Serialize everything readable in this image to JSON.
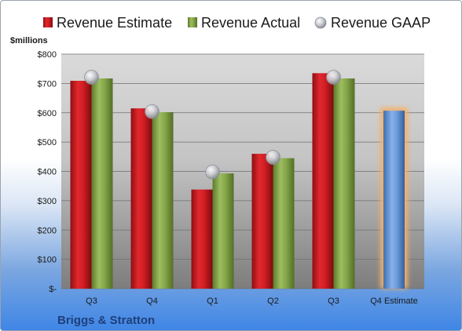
{
  "chart_data": {
    "type": "bar",
    "unit_label": "$millions",
    "company": "Briggs & Stratton",
    "categories": [
      "Q3",
      "Q4",
      "Q1",
      "Q2",
      "Q3",
      "Q4 Estimate"
    ],
    "ylim": [
      0,
      800
    ],
    "y_ticks": [
      0,
      100,
      200,
      300,
      400,
      500,
      600,
      700,
      800
    ],
    "y_tick_labels": [
      "$-",
      "$100",
      "$200",
      "$300",
      "$400",
      "$500",
      "$600",
      "$700",
      "$800"
    ],
    "grid": true,
    "legend_position": "top",
    "series": [
      {
        "name": "Revenue Estimate",
        "kind": "bar",
        "color": "#d11e24",
        "values": [
          709,
          615,
          338,
          460,
          735,
          null
        ]
      },
      {
        "name": "Revenue Actual",
        "kind": "bar",
        "color": "#86a84a",
        "values": [
          717,
          602,
          393,
          445,
          717,
          null
        ]
      },
      {
        "name": "Revenue GAAP",
        "kind": "marker",
        "color": "#b9bcc2",
        "values": [
          721,
          604,
          398,
          448,
          721,
          null
        ]
      }
    ],
    "estimate_bar": {
      "category_index": 5,
      "value": 607,
      "color": "#6a9ad8",
      "highlight_color": "#f5b169"
    }
  }
}
